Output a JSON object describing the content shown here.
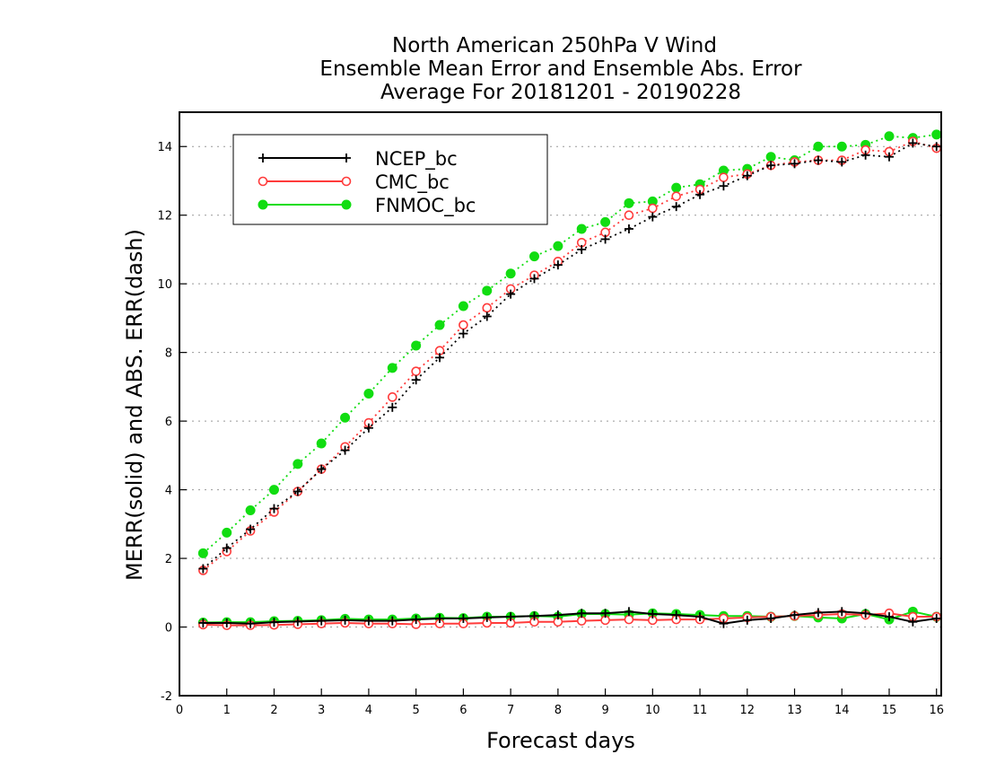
{
  "chart_data": {
    "type": "line",
    "title": [
      "North American 250hPa V Wind",
      "Ensemble Mean Error and Ensemble Abs. Error",
      "Average For 20181201 - 20190228"
    ],
    "xlabel": "Forecast days",
    "ylabel": "MERR(solid) and ABS. ERR(dash)",
    "xlim": [
      0,
      16.1
    ],
    "ylim": [
      -2,
      15
    ],
    "xticks": [
      0,
      1,
      2,
      3,
      4,
      5,
      6,
      7,
      8,
      9,
      10,
      11,
      12,
      13,
      14,
      15,
      16
    ],
    "yticks": [
      -2,
      0,
      2,
      4,
      6,
      8,
      10,
      12,
      14
    ],
    "grid": "horizontal dotted",
    "legend_position": "top-left",
    "x": [
      0.5,
      1,
      1.5,
      2,
      2.5,
      3,
      3.5,
      4,
      4.5,
      5,
      5.5,
      6,
      6.5,
      7,
      7.5,
      8,
      8.5,
      9,
      9.5,
      10,
      10.5,
      11,
      11.5,
      12,
      12.5,
      13,
      13.5,
      14,
      14.5,
      15,
      15.5,
      16
    ],
    "series": [
      {
        "name": "NCEP_bc",
        "color": "#000000",
        "marker": "plus",
        "merr": [
          0.12,
          0.12,
          0.1,
          0.14,
          0.16,
          0.18,
          0.2,
          0.18,
          0.18,
          0.22,
          0.25,
          0.25,
          0.28,
          0.3,
          0.32,
          0.35,
          0.4,
          0.4,
          0.45,
          0.38,
          0.35,
          0.3,
          0.1,
          0.2,
          0.25,
          0.35,
          0.42,
          0.45,
          0.4,
          0.3,
          0.15,
          0.25
        ],
        "abs_err": [
          1.7,
          2.3,
          2.85,
          3.45,
          3.95,
          4.6,
          5.15,
          5.8,
          6.4,
          7.2,
          7.85,
          8.55,
          9.05,
          9.7,
          10.15,
          10.55,
          11.0,
          11.3,
          11.6,
          11.95,
          12.25,
          12.6,
          12.85,
          13.15,
          13.45,
          13.5,
          13.6,
          13.55,
          13.75,
          13.7,
          14.1,
          14.0
        ]
      },
      {
        "name": "CMC_bc",
        "color": "#ff3b3b",
        "marker": "open-circle",
        "merr": [
          0.07,
          0.05,
          0.05,
          0.06,
          0.08,
          0.1,
          0.12,
          0.1,
          0.1,
          0.08,
          0.1,
          0.1,
          0.12,
          0.12,
          0.15,
          0.15,
          0.18,
          0.2,
          0.22,
          0.2,
          0.22,
          0.22,
          0.25,
          0.28,
          0.3,
          0.32,
          0.35,
          0.38,
          0.35,
          0.4,
          0.3,
          0.3
        ],
        "abs_err": [
          1.65,
          2.2,
          2.8,
          3.35,
          3.95,
          4.6,
          5.25,
          5.95,
          6.7,
          7.45,
          8.05,
          8.8,
          9.3,
          9.85,
          10.25,
          10.65,
          11.2,
          11.5,
          12.0,
          12.2,
          12.55,
          12.75,
          13.1,
          13.2,
          13.45,
          13.55,
          13.6,
          13.6,
          13.9,
          13.85,
          14.15,
          13.95
        ]
      },
      {
        "name": "FNMOC_bc",
        "color": "#11dd11",
        "marker": "filled-circle",
        "merr": [
          0.13,
          0.14,
          0.14,
          0.17,
          0.18,
          0.2,
          0.24,
          0.22,
          0.22,
          0.25,
          0.27,
          0.26,
          0.3,
          0.3,
          0.32,
          0.3,
          0.38,
          0.38,
          0.36,
          0.4,
          0.38,
          0.35,
          0.32,
          0.32,
          0.3,
          0.32,
          0.28,
          0.25,
          0.38,
          0.22,
          0.45,
          0.3
        ],
        "abs_err": [
          2.15,
          2.75,
          3.4,
          4.0,
          4.75,
          5.35,
          6.1,
          6.8,
          7.55,
          8.2,
          8.8,
          9.35,
          9.8,
          10.3,
          10.8,
          11.1,
          11.6,
          11.8,
          12.35,
          12.4,
          12.8,
          12.9,
          13.3,
          13.35,
          13.7,
          13.6,
          14.0,
          14.0,
          14.05,
          14.3,
          14.25,
          14.35
        ]
      }
    ]
  }
}
